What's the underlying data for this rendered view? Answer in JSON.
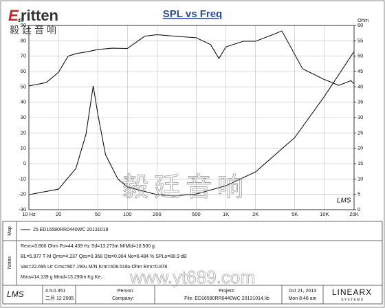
{
  "chart_data": {
    "type": "line",
    "title": "SPL vs Freq",
    "y_label": "dB",
    "y2_label": "Ohm",
    "xscale": "log",
    "grid": true,
    "xlim": [
      10,
      20000
    ],
    "xticks": [
      {
        "value": 10,
        "label": "10 Hz"
      },
      20,
      50,
      100,
      200,
      500,
      {
        "value": 1000,
        "label": "1K"
      },
      {
        "value": 2000,
        "label": "2K"
      },
      {
        "value": 5000,
        "label": "5K"
      },
      {
        "value": 10000,
        "label": "10K"
      },
      {
        "value": 20000,
        "label": "20K"
      }
    ],
    "ylim": [
      -30,
      90
    ],
    "yticks": [
      -30,
      -20,
      -10,
      0,
      10,
      20,
      30,
      40,
      50,
      60,
      70,
      80,
      90
    ],
    "y2lim": [
      0,
      60
    ],
    "y2ticks": [
      0,
      5,
      10,
      15,
      20,
      25,
      30,
      35,
      40,
      45,
      50,
      55,
      60
    ],
    "series": [
      {
        "color": "#111111",
        "axis": "y",
        "x": [
          10,
          15,
          20,
          25,
          30,
          40,
          50,
          70,
          100,
          150,
          200,
          300,
          500,
          700,
          850,
          1000,
          1500,
          2000,
          3000,
          3700,
          6000,
          9800,
          14000,
          18600,
          20000
        ],
        "values": [
          50.6,
          52.8,
          59.5,
          70,
          71.6,
          73,
          74.3,
          75.2,
          75,
          83,
          84,
          83,
          82,
          77.5,
          68.5,
          76,
          79.7,
          79.7,
          84,
          86.4,
          61.8,
          55,
          51,
          54,
          52
        ]
      },
      {
        "color": "#111111",
        "axis": "y2",
        "x": [
          10,
          20,
          30,
          38,
          45,
          50,
          60,
          80,
          100,
          200,
          300,
          500,
          1000,
          2000,
          5000,
          10000,
          20000
        ],
        "values": [
          4.9,
          6.7,
          13.4,
          24.6,
          40.3,
          31.3,
          17.9,
          10,
          7.4,
          4.9,
          4.5,
          5.1,
          7.8,
          12.3,
          23.5,
          36.9,
          51.5
        ]
      }
    ],
    "annotation": "LMS"
  },
  "logo": {
    "brand": "ritten",
    "brand_initial": "E",
    "chinese": "毅廷音响"
  },
  "watermark": {
    "chinese": "毅廷音响",
    "url": "www.yt689.com"
  },
  "map": {
    "label": "Map",
    "entry": "25  ED16580RR0440WC  20131018"
  },
  "notes": {
    "label": "Notes",
    "lines": [
      "Revc=3.800 Ohm  Fo=44.439 Hz  Sd=13.273m M/Mld=10.500 g",
      "BL=5.977 T·M  Qms=4.237  Qes=0.368  Qts=0.364  No=0.484 %  SPLo=88.9 dB",
      "Vas=22.695 Ltr  Cms=907.190u M/N  Krm=408.518u Ohm  Erm=0.878",
      "Mms=14.139 g  Mmd=13.290m Kg  Ke..."
    ]
  },
  "footer": {
    "app": "LMS",
    "version": "4.5.0.351",
    "date": "二月 12 2005",
    "person": "Person:",
    "company": "Company:",
    "project": "Project:",
    "file": "File: ED16580RR0440WC 20131014.lib",
    "day": "Oct 21, 2013",
    "time": "Mon  8:48 am",
    "brand": "LINEARX",
    "brand_sub": "S Y S T E M S"
  }
}
